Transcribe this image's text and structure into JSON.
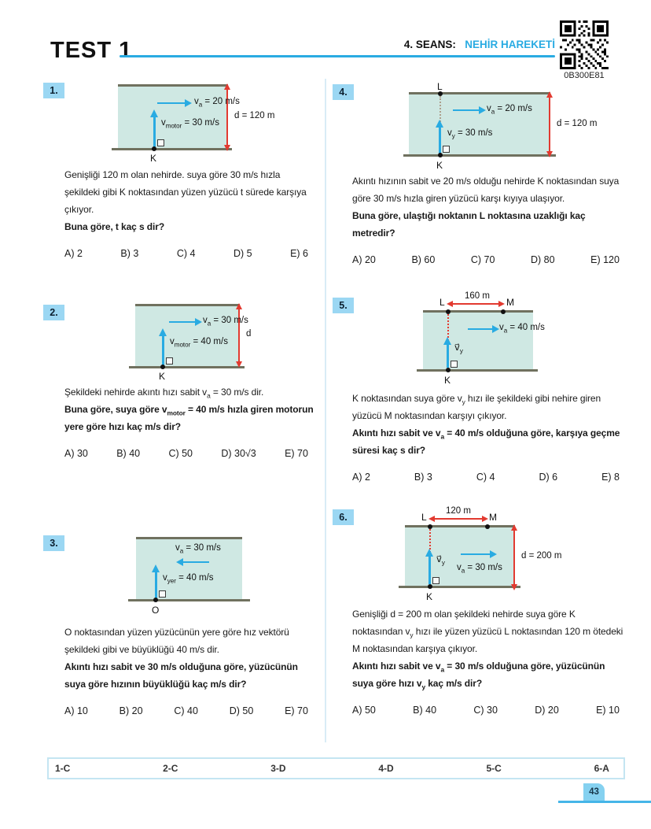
{
  "header": {
    "test_title": "TEST 1",
    "session_label": "4. SEANS:",
    "session_topic": "NEHİR HAREKETİ",
    "qr_code_id": "0B300E81"
  },
  "colors": {
    "accent_cyan": "#29abe2",
    "river_fill": "#cfe8e3",
    "bank_line": "#70715f",
    "red_arrow": "#e23a30",
    "badge_bg": "#9bd7f3"
  },
  "questions": [
    {
      "number": "1.",
      "diagram": {
        "flow_label": {
          "base": "v",
          "sub": "a",
          "rest": " = 20 m/s"
        },
        "swim_label": {
          "base": "v",
          "sub": "motor",
          "rest": " = 30 m/s"
        },
        "width_label": "d = 120 m",
        "start_point": "K"
      },
      "body": [
        {
          "t": "Genişliği 120 m olan nehirde. suya göre 30 m/s hızla şekildeki gibi K noktasından yüzen yüzücü t sürede karşıya çıkıyor."
        }
      ],
      "question": [
        {
          "t": "Buna göre, t kaç s dir?"
        }
      ],
      "options": [
        "A) 2",
        "B) 3",
        "C) 4",
        "D) 5",
        "E) 6"
      ]
    },
    {
      "number": "2.",
      "diagram": {
        "flow_label": {
          "base": "v",
          "sub": "a",
          "rest": " = 30 m/s"
        },
        "swim_label": {
          "base": "v",
          "sub": "motor",
          "rest": " = 40 m/s"
        },
        "width_label": "d",
        "start_point": "K"
      },
      "body": [
        {
          "t": "Şekildeki nehirde akıntı hızı sabit v"
        },
        {
          "t": "a",
          "sub": true
        },
        {
          "t": " = 30 m/s dir."
        }
      ],
      "question": [
        {
          "t": "Buna göre, suya göre v"
        },
        {
          "t": "motor",
          "sub": true
        },
        {
          "t": " = 40 m/s hızla giren motorun yere göre hızı kaç m/s dir?"
        }
      ],
      "options": [
        "A) 30",
        "B) 40",
        "C) 50",
        "D) 30√3",
        "E) 70"
      ]
    },
    {
      "number": "3.",
      "diagram": {
        "flow_label": {
          "base": "v",
          "sub": "a",
          "rest": " = 30 m/s"
        },
        "swim_label": {
          "base": "v",
          "sub": "yer",
          "rest": " = 40 m/s"
        },
        "start_point": "O"
      },
      "body": [
        {
          "t": "O noktasından yüzen yüzücünün yere göre hız vektörü şekildeki gibi ve büyüklüğü 40 m/s dir."
        }
      ],
      "question": [
        {
          "t": "Akıntı hızı sabit ve 30 m/s olduğuna göre, yüzücünün suya göre hızının büyüklüğü kaç m/s dir?"
        }
      ],
      "options": [
        "A) 10",
        "B) 20",
        "C) 40",
        "D) 50",
        "E) 70"
      ]
    },
    {
      "number": "4.",
      "diagram": {
        "flow_label": {
          "base": "v",
          "sub": "a",
          "rest": " = 20 m/s"
        },
        "swim_label": {
          "base": "v",
          "sub": "y",
          "rest": " = 30 m/s"
        },
        "width_label": "d = 120 m",
        "start_point": "K",
        "top_point": "L"
      },
      "body": [
        {
          "t": "Akıntı hızının sabit ve 20 m/s olduğu nehirde K noktasından suya göre 30 m/s hızla giren yüzücü karşı kıyıya ulaşıyor."
        }
      ],
      "question": [
        {
          "t": "Buna göre, ulaştığı noktanın L noktasına uzaklığı kaç metredir?"
        }
      ],
      "options": [
        "A) 20",
        "B) 60",
        "C) 70",
        "D) 80",
        "E) 120"
      ]
    },
    {
      "number": "5.",
      "diagram": {
        "flow_label": {
          "base": "v",
          "sub": "a",
          "rest": " = 40 m/s"
        },
        "swim_label": {
          "base": "v⃗",
          "sub": "y",
          "rest": ""
        },
        "distance_label": "160 m",
        "start_point": "K",
        "top_left_point": "L",
        "top_right_point": "M"
      },
      "body": [
        {
          "t": "K noktasından suya göre v"
        },
        {
          "t": "y",
          "sub": true
        },
        {
          "t": " hızı ile şekildeki gibi nehire giren yüzücü M noktasından karşıyı çıkıyor."
        }
      ],
      "question": [
        {
          "t": "Akıntı hızı sabit ve v"
        },
        {
          "t": "a",
          "sub": true
        },
        {
          "t": " = 40 m/s olduğuna göre, karşıya geçme süresi kaç s dir?"
        }
      ],
      "options": [
        "A) 2",
        "B) 3",
        "C) 4",
        "D) 6",
        "E) 8"
      ]
    },
    {
      "number": "6.",
      "diagram": {
        "flow_label": {
          "base": "v",
          "sub": "a",
          "rest": " = 30 m/s"
        },
        "swim_label": {
          "base": "v⃗",
          "sub": "y",
          "rest": ""
        },
        "width_label": "d = 200 m",
        "distance_label": "120 m",
        "start_point": "K",
        "top_left_point": "L",
        "top_right_point": "M"
      },
      "body": [
        {
          "t": "Genişliği d = 200 m olan şekildeki nehirde suya göre K noktasından v"
        },
        {
          "t": "y",
          "sub": true
        },
        {
          "t": " hızı ile yüzen yüzücü L noktasından 120 m ötedeki M noktasından karşıya çıkıyor."
        }
      ],
      "question": [
        {
          "t": "Akıntı hızı sabit ve v"
        },
        {
          "t": "a",
          "sub": true
        },
        {
          "t": " = 30 m/s olduğuna göre, yüzücünün suya göre hızı v"
        },
        {
          "t": "y",
          "sub": true
        },
        {
          "t": " kaç m/s dir?"
        }
      ],
      "options": [
        "A) 50",
        "B) 40",
        "C) 30",
        "D) 20",
        "E) 10"
      ]
    }
  ],
  "answer_key": [
    "1-C",
    "2-C",
    "3-D",
    "4-D",
    "5-C",
    "6-A"
  ],
  "page_number": "43"
}
